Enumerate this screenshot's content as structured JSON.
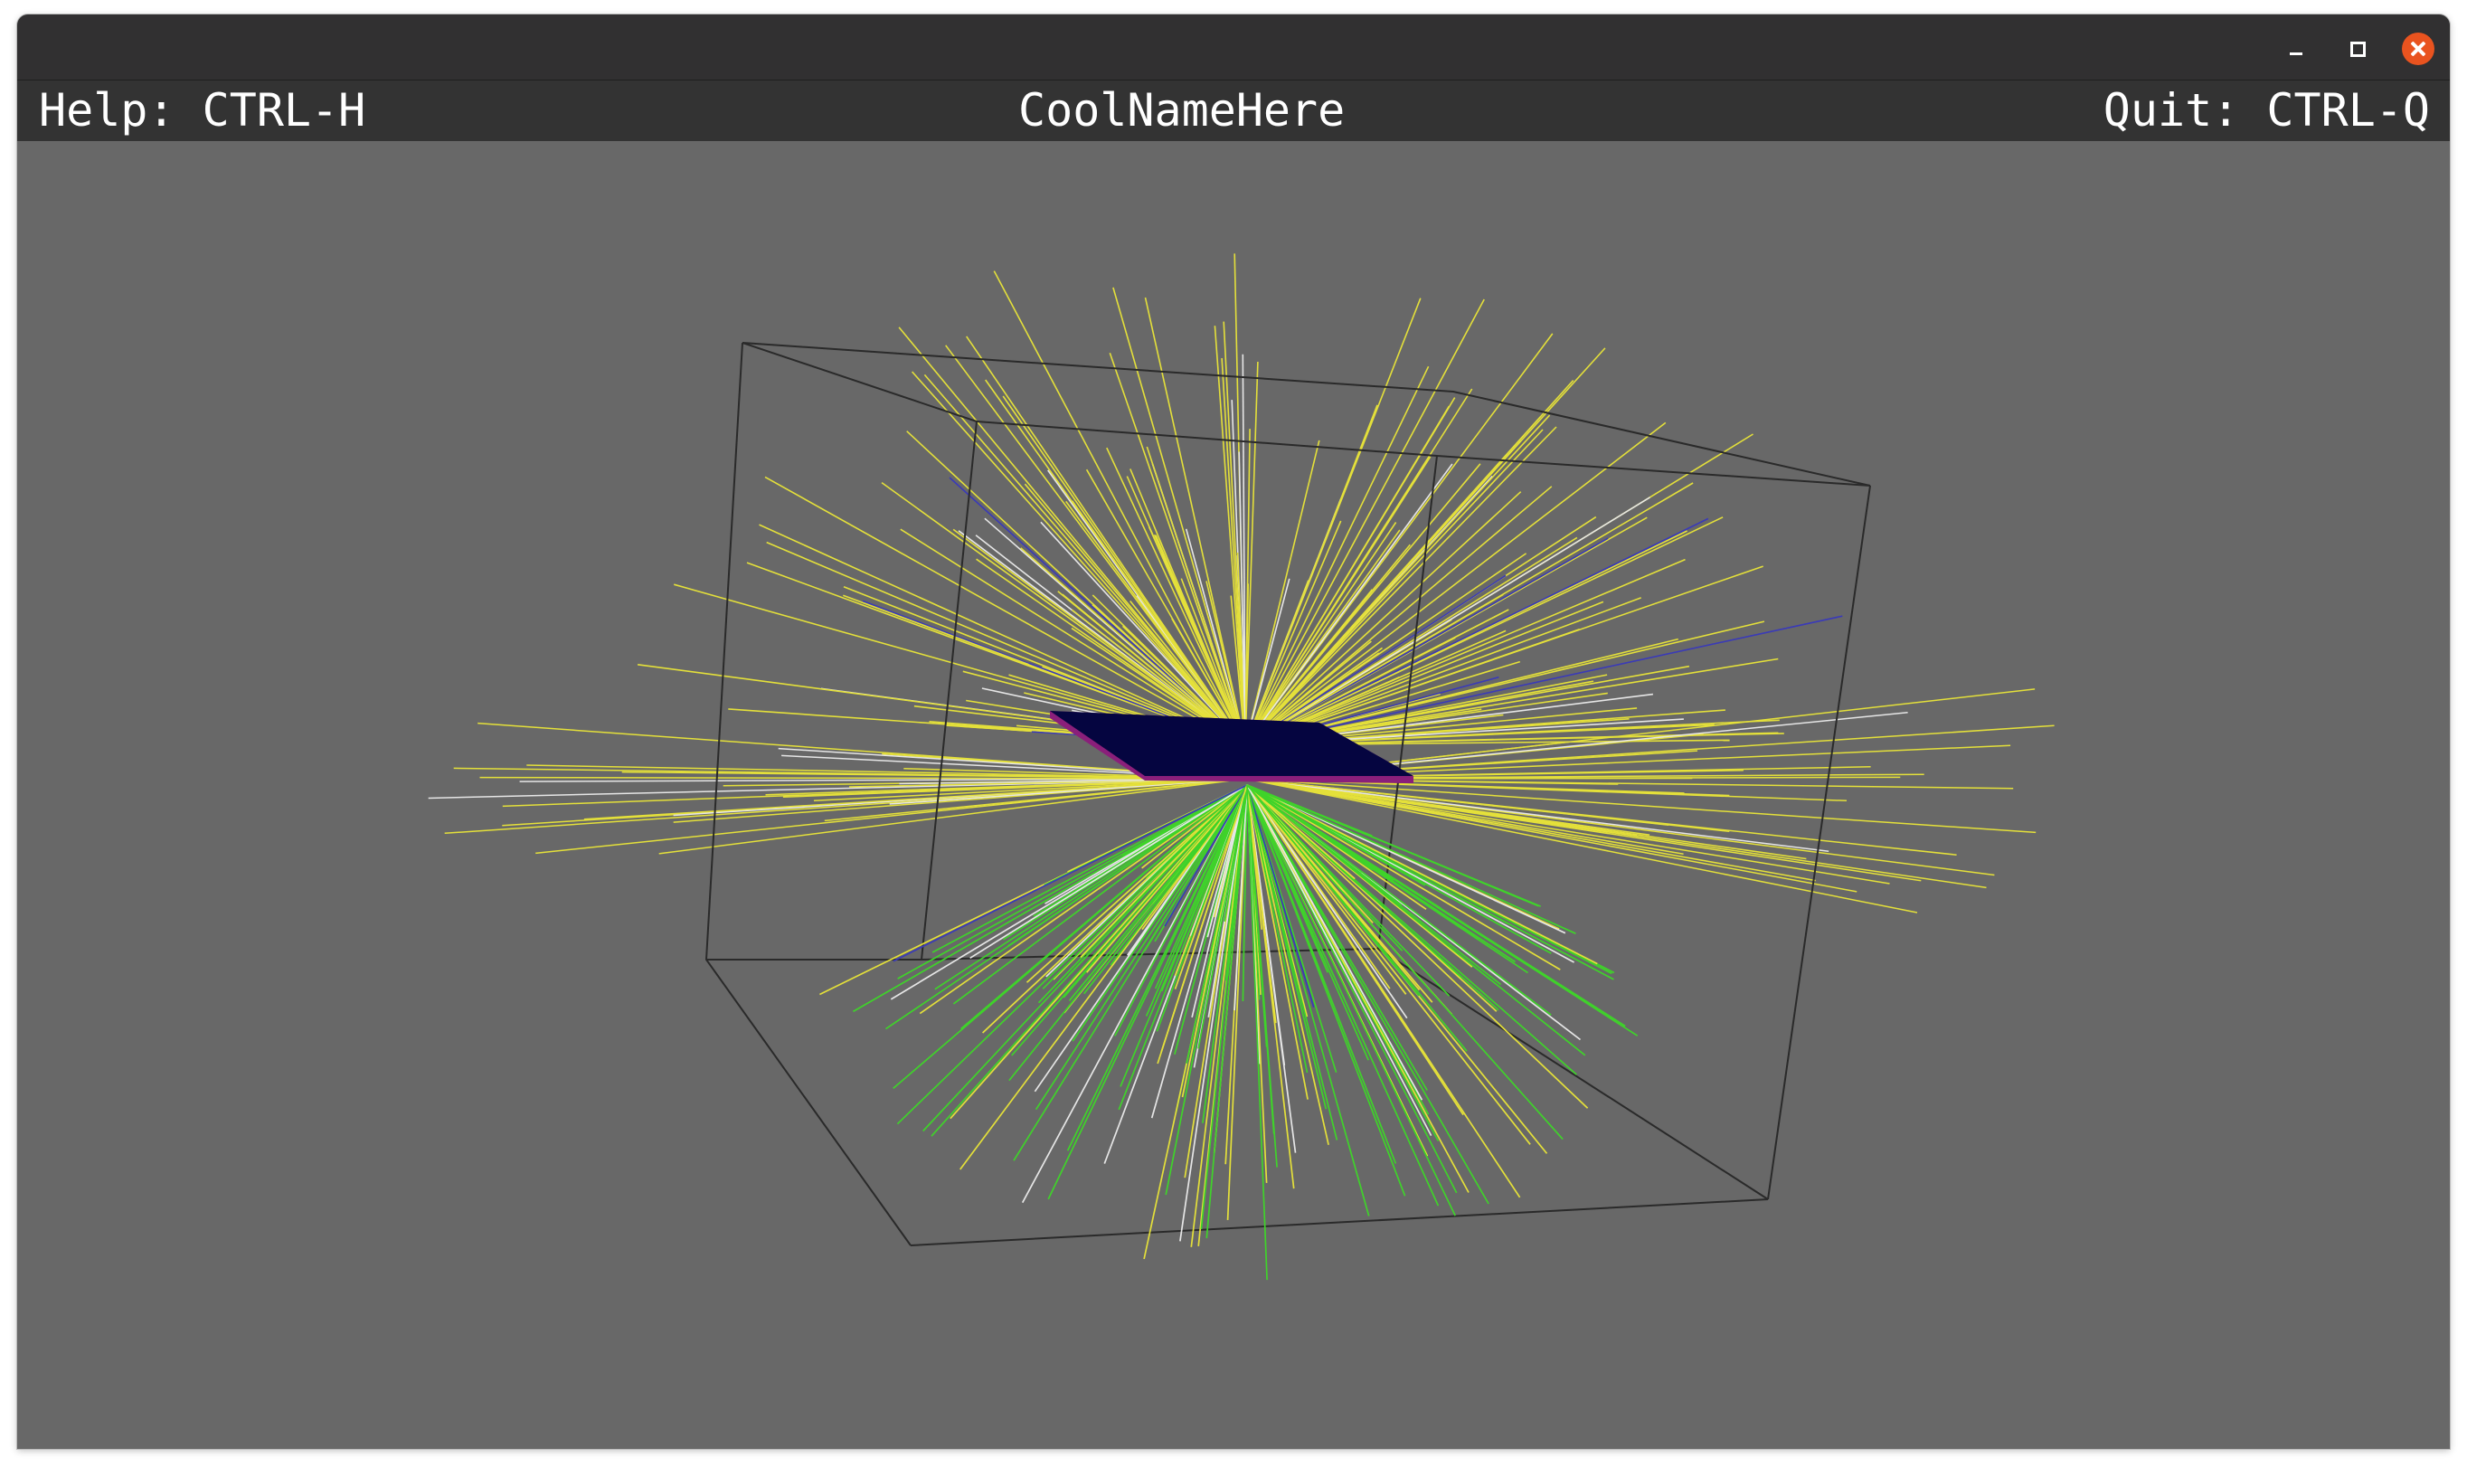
{
  "window": {
    "controls": {
      "minimize_icon": "minimize-icon",
      "maximize_icon": "maximize-icon",
      "close_icon": "close-icon",
      "close_color": "#e9531f"
    }
  },
  "infobar": {
    "help": "Help: CTRL-H",
    "title": "CoolNameHere",
    "quit": "Quit: CTRL-Q"
  },
  "scene": {
    "background": "#686868",
    "box_color": "#2a2a2a",
    "plate_color": "#050540",
    "plate_edge_color": "#8a1f7a",
    "ray_colors": {
      "yellow": "#e4e03a",
      "green": "#3fd32a",
      "white": "#e6e6e6",
      "blue": "#3a3ab8"
    }
  }
}
